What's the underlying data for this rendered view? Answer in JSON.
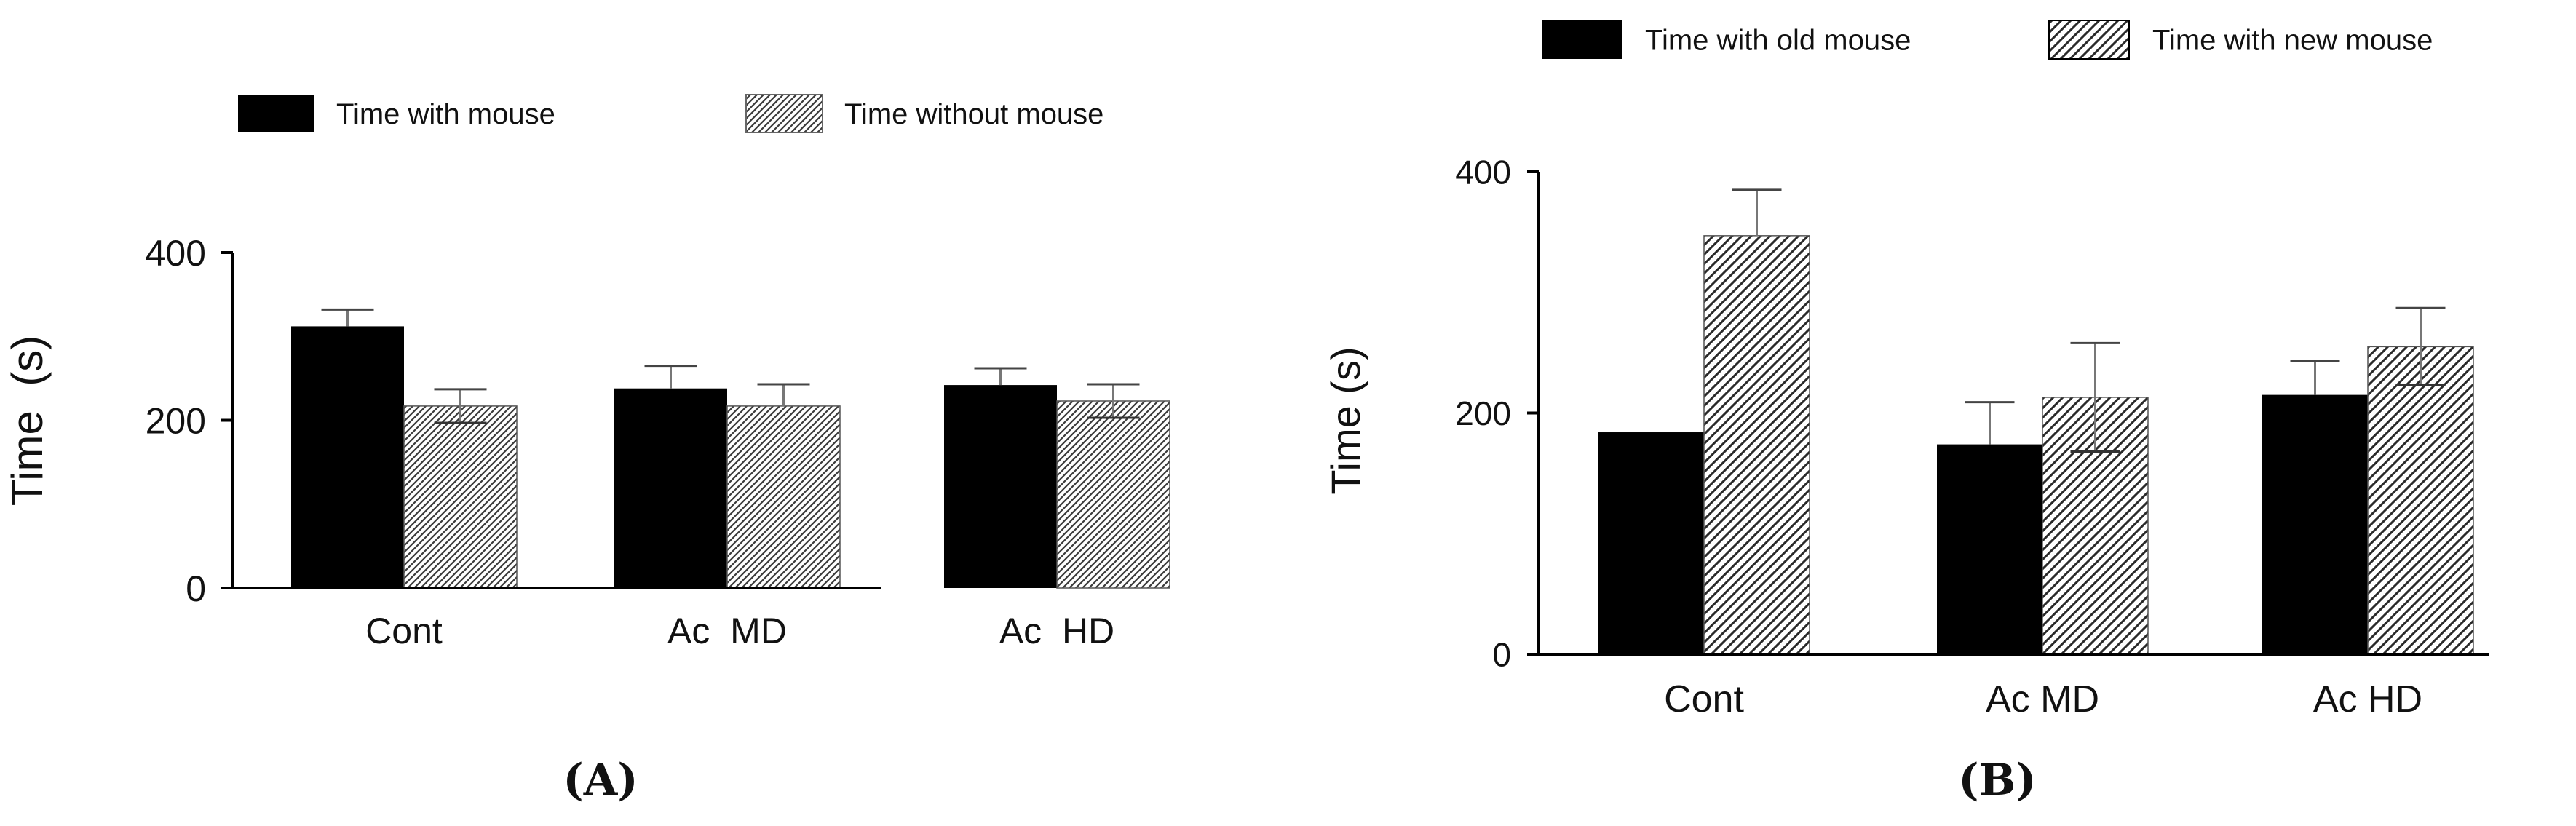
{
  "panel_labels": {
    "a": "(A)",
    "b": "(B)"
  },
  "colors": {
    "solid": "#000000",
    "hatch_stroke": "#3a3a3a",
    "hatch_bg": "#ffffff",
    "axis": "#000000"
  },
  "chart_data": [
    {
      "type": "bar",
      "panel": "(A)",
      "categories": [
        "Cont",
        "Ac  MD",
        "Ac  HD"
      ],
      "series": [
        {
          "name": "Time  with  mouse",
          "fill": "solid",
          "values": [
            312,
            238,
            242
          ],
          "error_up": [
            20,
            27,
            20
          ],
          "error_down": [
            0,
            0,
            0
          ]
        },
        {
          "name": "Time  without  mouse",
          "fill": "hatch",
          "values": [
            217,
            217,
            223
          ],
          "error_up": [
            20,
            26,
            20
          ],
          "error_down": [
            20,
            0,
            20
          ]
        }
      ],
      "ylabel": "Time  (s)",
      "xlabel": "",
      "ylim": [
        0,
        400
      ],
      "yticks": [
        0,
        200,
        400
      ],
      "legend": "top",
      "grid": false
    },
    {
      "type": "bar",
      "panel": "(B)",
      "categories": [
        "Cont",
        "Ac MD",
        "Ac HD"
      ],
      "series": [
        {
          "name": "Time with old mouse",
          "fill": "solid",
          "values": [
            184,
            174,
            215
          ],
          "error_up": [
            0,
            35,
            28
          ],
          "error_down": [
            0,
            0,
            0
          ]
        },
        {
          "name": "Time with new mouse",
          "fill": "hatch",
          "values": [
            347,
            213,
            255
          ],
          "error_up": [
            38,
            45,
            32
          ],
          "error_down": [
            0,
            45,
            32
          ]
        }
      ],
      "ylabel": "Time (s)",
      "xlabel": "",
      "ylim": [
        0,
        400
      ],
      "yticks": [
        0,
        200,
        400
      ],
      "legend": "top",
      "grid": false
    }
  ]
}
